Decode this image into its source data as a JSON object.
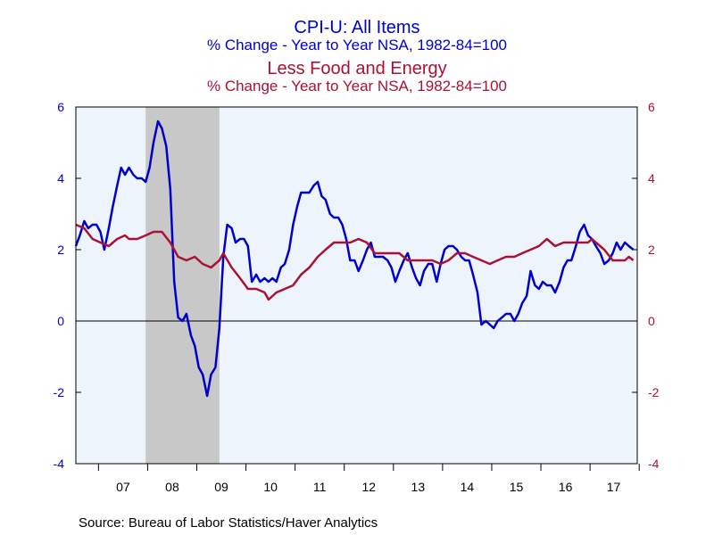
{
  "chart_data": {
    "type": "line",
    "titles": [
      {
        "text": "CPI-U: All Items",
        "color": "#0000cc"
      },
      {
        "text": "% Change - Year to Year     NSA, 1982-84=100",
        "color": "#0000cc"
      },
      {
        "text": "Less Food and Energy",
        "color": "#aa1133"
      },
      {
        "text": "% Change - Year to Year     NSA, 1982-84=100",
        "color": "#aa1133"
      }
    ],
    "source": "Source:  Bureau of Labor Statistics/Haver Analytics",
    "x_tick_labels": [
      "07",
      "08",
      "09",
      "10",
      "11",
      "12",
      "13",
      "14",
      "15",
      "16",
      "17"
    ],
    "x_range": [
      2006.54,
      2017.96
    ],
    "y_left": {
      "ticks": [
        "6",
        "4",
        "2",
        "0",
        "-2",
        "-4"
      ],
      "range": [
        -4,
        6
      ],
      "color": "#0000cc"
    },
    "y_right": {
      "ticks": [
        "6",
        "4",
        "2",
        "0",
        "-2",
        "-4"
      ],
      "range": [
        -4,
        6
      ],
      "color": "#aa1133"
    },
    "recession": {
      "start": 2007.96,
      "end": 2009.46,
      "color": "#c8c8c8"
    },
    "plot_background": "#eef4fc",
    "zero_line": true,
    "series": [
      {
        "color": "#0000cc",
        "axis": "left",
        "points": [
          [
            2006.54,
            2.1
          ],
          [
            2006.62,
            2.4
          ],
          [
            2006.71,
            2.8
          ],
          [
            2006.79,
            2.6
          ],
          [
            2006.88,
            2.7
          ],
          [
            2006.96,
            2.7
          ],
          [
            2007.04,
            2.5
          ],
          [
            2007.12,
            2.0
          ],
          [
            2007.21,
            2.6
          ],
          [
            2007.29,
            3.2
          ],
          [
            2007.38,
            3.8
          ],
          [
            2007.46,
            4.3
          ],
          [
            2007.54,
            4.1
          ],
          [
            2007.62,
            4.3
          ],
          [
            2007.71,
            4.1
          ],
          [
            2007.79,
            4.0
          ],
          [
            2007.88,
            4.0
          ],
          [
            2007.96,
            3.9
          ],
          [
            2008.04,
            4.3
          ],
          [
            2008.12,
            5.0
          ],
          [
            2008.21,
            5.6
          ],
          [
            2008.29,
            5.4
          ],
          [
            2008.38,
            4.9
          ],
          [
            2008.46,
            3.7
          ],
          [
            2008.54,
            1.1
          ],
          [
            2008.62,
            0.1
          ],
          [
            2008.71,
            0.0
          ],
          [
            2008.79,
            0.2
          ],
          [
            2008.88,
            -0.4
          ],
          [
            2008.96,
            -0.7
          ],
          [
            2009.04,
            -1.3
          ],
          [
            2009.12,
            -1.5
          ],
          [
            2009.21,
            -2.1
          ],
          [
            2009.29,
            -1.5
          ],
          [
            2009.38,
            -1.3
          ],
          [
            2009.46,
            -0.2
          ],
          [
            2009.54,
            1.8
          ],
          [
            2009.62,
            2.7
          ],
          [
            2009.71,
            2.6
          ],
          [
            2009.79,
            2.2
          ],
          [
            2009.88,
            2.3
          ],
          [
            2009.96,
            2.3
          ],
          [
            2010.04,
            2.1
          ],
          [
            2010.12,
            1.1
          ],
          [
            2010.21,
            1.3
          ],
          [
            2010.29,
            1.1
          ],
          [
            2010.38,
            1.2
          ],
          [
            2010.46,
            1.1
          ],
          [
            2010.54,
            1.2
          ],
          [
            2010.62,
            1.1
          ],
          [
            2010.71,
            1.5
          ],
          [
            2010.79,
            1.6
          ],
          [
            2010.88,
            2.0
          ],
          [
            2010.96,
            2.7
          ],
          [
            2011.04,
            3.2
          ],
          [
            2011.12,
            3.6
          ],
          [
            2011.21,
            3.6
          ],
          [
            2011.29,
            3.6
          ],
          [
            2011.38,
            3.8
          ],
          [
            2011.46,
            3.9
          ],
          [
            2011.54,
            3.5
          ],
          [
            2011.62,
            3.4
          ],
          [
            2011.71,
            3.0
          ],
          [
            2011.79,
            2.9
          ],
          [
            2011.88,
            2.9
          ],
          [
            2011.96,
            2.7
          ],
          [
            2012.04,
            2.3
          ],
          [
            2012.12,
            1.7
          ],
          [
            2012.21,
            1.7
          ],
          [
            2012.29,
            1.4
          ],
          [
            2012.38,
            1.7
          ],
          [
            2012.46,
            2.0
          ],
          [
            2012.54,
            2.2
          ],
          [
            2012.62,
            1.8
          ],
          [
            2012.71,
            1.8
          ],
          [
            2012.79,
            1.8
          ],
          [
            2012.88,
            1.7
          ],
          [
            2012.96,
            1.5
          ],
          [
            2013.04,
            1.1
          ],
          [
            2013.12,
            1.4
          ],
          [
            2013.21,
            1.7
          ],
          [
            2013.29,
            1.9
          ],
          [
            2013.38,
            1.5
          ],
          [
            2013.46,
            1.2
          ],
          [
            2013.54,
            1.0
          ],
          [
            2013.62,
            1.4
          ],
          [
            2013.71,
            1.6
          ],
          [
            2013.79,
            1.6
          ],
          [
            2013.88,
            1.1
          ],
          [
            2013.96,
            1.6
          ],
          [
            2014.04,
            2.0
          ],
          [
            2014.12,
            2.1
          ],
          [
            2014.21,
            2.1
          ],
          [
            2014.29,
            2.0
          ],
          [
            2014.38,
            1.8
          ],
          [
            2014.46,
            1.7
          ],
          [
            2014.54,
            1.7
          ],
          [
            2014.62,
            1.3
          ],
          [
            2014.71,
            0.8
          ],
          [
            2014.79,
            -0.1
          ],
          [
            2014.88,
            0.0
          ],
          [
            2014.96,
            -0.1
          ],
          [
            2015.04,
            -0.2
          ],
          [
            2015.12,
            0.0
          ],
          [
            2015.21,
            0.1
          ],
          [
            2015.29,
            0.2
          ],
          [
            2015.38,
            0.2
          ],
          [
            2015.46,
            0.0
          ],
          [
            2015.54,
            0.2
          ],
          [
            2015.62,
            0.5
          ],
          [
            2015.71,
            0.7
          ],
          [
            2015.79,
            1.4
          ],
          [
            2015.88,
            1.0
          ],
          [
            2015.96,
            0.9
          ],
          [
            2016.04,
            1.1
          ],
          [
            2016.12,
            1.0
          ],
          [
            2016.21,
            1.0
          ],
          [
            2016.29,
            0.8
          ],
          [
            2016.38,
            1.1
          ],
          [
            2016.46,
            1.5
          ],
          [
            2016.54,
            1.7
          ],
          [
            2016.62,
            1.7
          ],
          [
            2016.71,
            2.1
          ],
          [
            2016.79,
            2.5
          ],
          [
            2016.88,
            2.7
          ],
          [
            2016.96,
            2.4
          ],
          [
            2017.04,
            2.3
          ],
          [
            2017.12,
            2.1
          ],
          [
            2017.21,
            1.9
          ],
          [
            2017.29,
            1.6
          ],
          [
            2017.38,
            1.7
          ],
          [
            2017.46,
            1.9
          ],
          [
            2017.54,
            2.2
          ],
          [
            2017.62,
            2.0
          ],
          [
            2017.71,
            2.2
          ],
          [
            2017.79,
            2.1
          ],
          [
            2017.88,
            2.0
          ]
        ]
      },
      {
        "color": "#aa1133",
        "axis": "right",
        "points": [
          [
            2006.54,
            2.7
          ],
          [
            2006.71,
            2.6
          ],
          [
            2006.88,
            2.3
          ],
          [
            2007.04,
            2.2
          ],
          [
            2007.21,
            2.1
          ],
          [
            2007.38,
            2.3
          ],
          [
            2007.54,
            2.4
          ],
          [
            2007.62,
            2.3
          ],
          [
            2007.79,
            2.3
          ],
          [
            2007.96,
            2.4
          ],
          [
            2008.12,
            2.5
          ],
          [
            2008.29,
            2.5
          ],
          [
            2008.46,
            2.2
          ],
          [
            2008.62,
            1.8
          ],
          [
            2008.79,
            1.7
          ],
          [
            2008.96,
            1.8
          ],
          [
            2009.12,
            1.6
          ],
          [
            2009.29,
            1.5
          ],
          [
            2009.46,
            1.7
          ],
          [
            2009.54,
            1.9
          ],
          [
            2009.71,
            1.5
          ],
          [
            2009.88,
            1.2
          ],
          [
            2010.04,
            0.9
          ],
          [
            2010.21,
            0.9
          ],
          [
            2010.38,
            0.8
          ],
          [
            2010.46,
            0.6
          ],
          [
            2010.62,
            0.8
          ],
          [
            2010.79,
            0.9
          ],
          [
            2010.96,
            1.0
          ],
          [
            2011.12,
            1.3
          ],
          [
            2011.29,
            1.5
          ],
          [
            2011.46,
            1.8
          ],
          [
            2011.62,
            2.0
          ],
          [
            2011.79,
            2.2
          ],
          [
            2011.96,
            2.2
          ],
          [
            2012.12,
            2.2
          ],
          [
            2012.29,
            2.3
          ],
          [
            2012.46,
            2.2
          ],
          [
            2012.62,
            1.9
          ],
          [
            2012.79,
            1.9
          ],
          [
            2012.96,
            1.9
          ],
          [
            2013.12,
            1.9
          ],
          [
            2013.29,
            1.7
          ],
          [
            2013.46,
            1.7
          ],
          [
            2013.62,
            1.7
          ],
          [
            2013.79,
            1.7
          ],
          [
            2013.96,
            1.6
          ],
          [
            2014.12,
            1.7
          ],
          [
            2014.29,
            1.9
          ],
          [
            2014.46,
            1.9
          ],
          [
            2014.62,
            1.8
          ],
          [
            2014.79,
            1.7
          ],
          [
            2014.96,
            1.6
          ],
          [
            2015.12,
            1.7
          ],
          [
            2015.29,
            1.8
          ],
          [
            2015.46,
            1.8
          ],
          [
            2015.62,
            1.9
          ],
          [
            2015.79,
            2.0
          ],
          [
            2015.96,
            2.1
          ],
          [
            2016.12,
            2.3
          ],
          [
            2016.29,
            2.1
          ],
          [
            2016.46,
            2.2
          ],
          [
            2016.62,
            2.2
          ],
          [
            2016.79,
            2.2
          ],
          [
            2016.96,
            2.2
          ],
          [
            2017.04,
            2.3
          ],
          [
            2017.12,
            2.2
          ],
          [
            2017.29,
            2.0
          ],
          [
            2017.46,
            1.7
          ],
          [
            2017.62,
            1.7
          ],
          [
            2017.71,
            1.7
          ],
          [
            2017.79,
            1.8
          ],
          [
            2017.88,
            1.7
          ]
        ]
      }
    ]
  }
}
